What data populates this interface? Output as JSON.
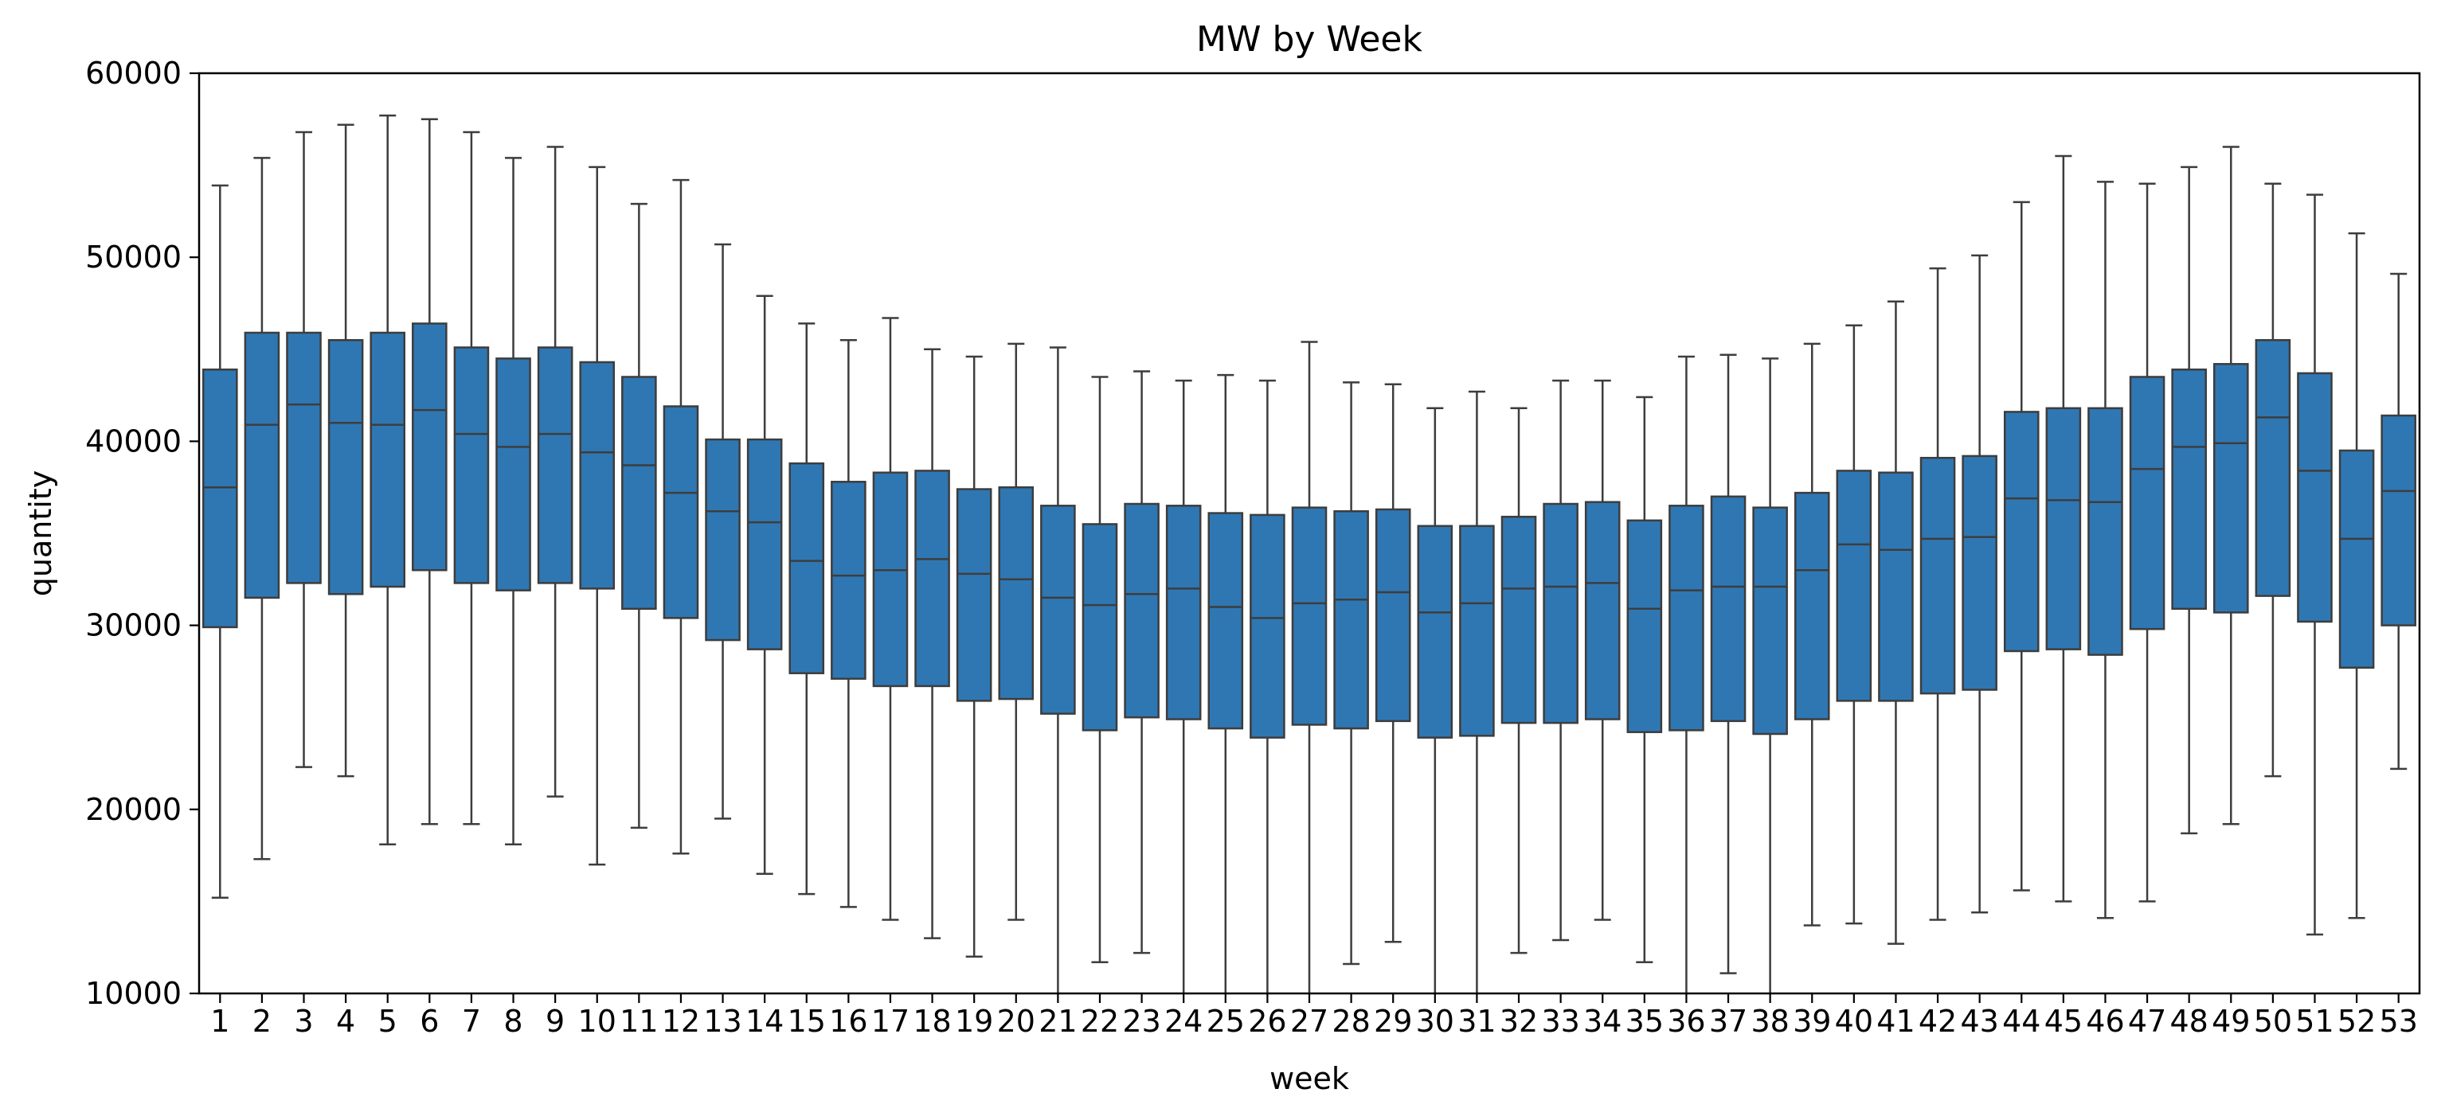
{
  "chart_data": {
    "type": "box",
    "title": "MW by Week",
    "xlabel": "week",
    "ylabel": "quantity",
    "ylim": [
      10000,
      60000
    ],
    "yticks": [
      10000,
      20000,
      30000,
      40000,
      50000,
      60000
    ],
    "grid": false,
    "box_color": "#2f77b3",
    "line_color": "#3d3d3d",
    "boxes": [
      {
        "week": "1",
        "whislo": 15200,
        "q1": 29900,
        "median": 37500,
        "q3": 43900,
        "whishi": 53900
      },
      {
        "week": "2",
        "whislo": 17300,
        "q1": 31500,
        "median": 40900,
        "q3": 45900,
        "whishi": 55400
      },
      {
        "week": "3",
        "whislo": 22300,
        "q1": 32300,
        "median": 42000,
        "q3": 45900,
        "whishi": 56800
      },
      {
        "week": "4",
        "whislo": 21800,
        "q1": 31700,
        "median": 41000,
        "q3": 45500,
        "whishi": 57200
      },
      {
        "week": "5",
        "whislo": 18100,
        "q1": 32100,
        "median": 40900,
        "q3": 45900,
        "whishi": 57700
      },
      {
        "week": "6",
        "whislo": 19200,
        "q1": 33000,
        "median": 41700,
        "q3": 46400,
        "whishi": 57500
      },
      {
        "week": "7",
        "whislo": 19200,
        "q1": 32300,
        "median": 40400,
        "q3": 45100,
        "whishi": 56800
      },
      {
        "week": "8",
        "whislo": 18100,
        "q1": 31900,
        "median": 39700,
        "q3": 44500,
        "whishi": 55400
      },
      {
        "week": "9",
        "whislo": 20700,
        "q1": 32300,
        "median": 40400,
        "q3": 45100,
        "whishi": 56000
      },
      {
        "week": "10",
        "whislo": 17000,
        "q1": 32000,
        "median": 39400,
        "q3": 44300,
        "whishi": 54900
      },
      {
        "week": "11",
        "whislo": 19000,
        "q1": 30900,
        "median": 38700,
        "q3": 43500,
        "whishi": 52900
      },
      {
        "week": "12",
        "whislo": 17600,
        "q1": 30400,
        "median": 37200,
        "q3": 41900,
        "whishi": 54200
      },
      {
        "week": "13",
        "whislo": 19500,
        "q1": 29200,
        "median": 36200,
        "q3": 40100,
        "whishi": 50700
      },
      {
        "week": "14",
        "whislo": 16500,
        "q1": 28700,
        "median": 35600,
        "q3": 40100,
        "whishi": 47900
      },
      {
        "week": "15",
        "whislo": 15400,
        "q1": 27400,
        "median": 33500,
        "q3": 38800,
        "whishi": 46400
      },
      {
        "week": "16",
        "whislo": 14700,
        "q1": 27100,
        "median": 32700,
        "q3": 37800,
        "whishi": 45500
      },
      {
        "week": "17",
        "whislo": 14000,
        "q1": 26700,
        "median": 33000,
        "q3": 38300,
        "whishi": 46700
      },
      {
        "week": "18",
        "whislo": 13000,
        "q1": 26700,
        "median": 33600,
        "q3": 38400,
        "whishi": 45000
      },
      {
        "week": "19",
        "whislo": 12000,
        "q1": 25900,
        "median": 32800,
        "q3": 37400,
        "whishi": 44600
      },
      {
        "week": "20",
        "whislo": 14000,
        "q1": 26000,
        "median": 32500,
        "q3": 37500,
        "whishi": 45300
      },
      {
        "week": "21",
        "whislo": 9000,
        "q1": 25200,
        "median": 31500,
        "q3": 36500,
        "whishi": 45100
      },
      {
        "week": "22",
        "whislo": 11700,
        "q1": 24300,
        "median": 31100,
        "q3": 35500,
        "whishi": 43500
      },
      {
        "week": "23",
        "whislo": 12200,
        "q1": 25000,
        "median": 31700,
        "q3": 36600,
        "whishi": 43800
      },
      {
        "week": "24",
        "whislo": 9000,
        "q1": 24900,
        "median": 32000,
        "q3": 36500,
        "whishi": 43300
      },
      {
        "week": "25",
        "whislo": 9000,
        "q1": 24400,
        "median": 31000,
        "q3": 36100,
        "whishi": 43600
      },
      {
        "week": "26",
        "whislo": 9000,
        "q1": 23900,
        "median": 30400,
        "q3": 36000,
        "whishi": 43300
      },
      {
        "week": "27",
        "whislo": 9000,
        "q1": 24600,
        "median": 31200,
        "q3": 36400,
        "whishi": 45400
      },
      {
        "week": "28",
        "whislo": 11600,
        "q1": 24400,
        "median": 31400,
        "q3": 36200,
        "whishi": 43200
      },
      {
        "week": "29",
        "whislo": 12800,
        "q1": 24800,
        "median": 31800,
        "q3": 36300,
        "whishi": 43100
      },
      {
        "week": "30",
        "whislo": 9000,
        "q1": 23900,
        "median": 30700,
        "q3": 35400,
        "whishi": 41800
      },
      {
        "week": "31",
        "whislo": 9000,
        "q1": 24000,
        "median": 31200,
        "q3": 35400,
        "whishi": 42700
      },
      {
        "week": "32",
        "whislo": 12200,
        "q1": 24700,
        "median": 32000,
        "q3": 35900,
        "whishi": 41800
      },
      {
        "week": "33",
        "whislo": 12900,
        "q1": 24700,
        "median": 32100,
        "q3": 36600,
        "whishi": 43300
      },
      {
        "week": "34",
        "whislo": 14000,
        "q1": 24900,
        "median": 32300,
        "q3": 36700,
        "whishi": 43300
      },
      {
        "week": "35",
        "whislo": 11700,
        "q1": 24200,
        "median": 30900,
        "q3": 35700,
        "whishi": 42400
      },
      {
        "week": "36",
        "whislo": 9000,
        "q1": 24300,
        "median": 31900,
        "q3": 36500,
        "whishi": 44600
      },
      {
        "week": "37",
        "whislo": 11100,
        "q1": 24800,
        "median": 32100,
        "q3": 37000,
        "whishi": 44700
      },
      {
        "week": "38",
        "whislo": 9000,
        "q1": 24100,
        "median": 32100,
        "q3": 36400,
        "whishi": 44500
      },
      {
        "week": "39",
        "whislo": 13700,
        "q1": 24900,
        "median": 33000,
        "q3": 37200,
        "whishi": 45300
      },
      {
        "week": "40",
        "whislo": 13800,
        "q1": 25900,
        "median": 34400,
        "q3": 38400,
        "whishi": 46300
      },
      {
        "week": "41",
        "whislo": 12700,
        "q1": 25900,
        "median": 34100,
        "q3": 38300,
        "whishi": 47600
      },
      {
        "week": "42",
        "whislo": 14000,
        "q1": 26300,
        "median": 34700,
        "q3": 39100,
        "whishi": 49400
      },
      {
        "week": "43",
        "whislo": 14400,
        "q1": 26500,
        "median": 34800,
        "q3": 39200,
        "whishi": 50100
      },
      {
        "week": "44",
        "whislo": 15600,
        "q1": 28600,
        "median": 36900,
        "q3": 41600,
        "whishi": 53000
      },
      {
        "week": "45",
        "whislo": 15000,
        "q1": 28700,
        "median": 36800,
        "q3": 41800,
        "whishi": 55500
      },
      {
        "week": "46",
        "whislo": 14100,
        "q1": 28400,
        "median": 36700,
        "q3": 41800,
        "whishi": 54100
      },
      {
        "week": "47",
        "whislo": 15000,
        "q1": 29800,
        "median": 38500,
        "q3": 43500,
        "whishi": 54000
      },
      {
        "week": "48",
        "whislo": 18700,
        "q1": 30900,
        "median": 39700,
        "q3": 43900,
        "whishi": 54900
      },
      {
        "week": "49",
        "whislo": 19200,
        "q1": 30700,
        "median": 39900,
        "q3": 44200,
        "whishi": 56000
      },
      {
        "week": "50",
        "whislo": 21800,
        "q1": 31600,
        "median": 41300,
        "q3": 45500,
        "whishi": 54000
      },
      {
        "week": "51",
        "whislo": 13200,
        "q1": 30200,
        "median": 38400,
        "q3": 43700,
        "whishi": 53400
      },
      {
        "week": "52",
        "whislo": 14100,
        "q1": 27700,
        "median": 34700,
        "q3": 39500,
        "whishi": 51300
      },
      {
        "week": "53",
        "whislo": 22200,
        "q1": 30000,
        "median": 37300,
        "q3": 41400,
        "whishi": 49100
      }
    ]
  }
}
